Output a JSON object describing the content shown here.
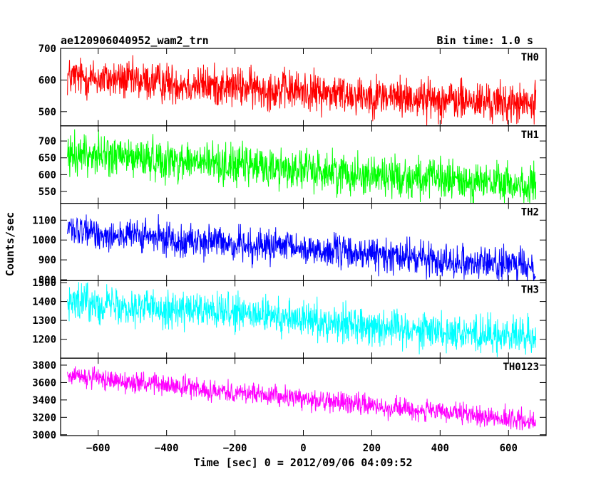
{
  "chart_data": {
    "type": "line",
    "title": "ae120906040952_wam2_trn",
    "subtitle": "Bin time: 1.0 s",
    "xlabel": "Time [sec] 0 = 2012/09/06 04:09:52",
    "ylabel": "Counts/sec",
    "xlim": [
      -710,
      710
    ],
    "x_ticks": [
      -600,
      -400,
      -200,
      0,
      200,
      400,
      600
    ],
    "x_range": [
      -690,
      680
    ],
    "series": [
      {
        "name": "TH0",
        "color": "#ff0000",
        "ylim": [
          455,
          700
        ],
        "yticks": [
          500,
          600,
          700
        ],
        "start": 610,
        "end": 520,
        "noise": 42,
        "data_kind": "noisy-linear"
      },
      {
        "name": "TH1",
        "color": "#00ff00",
        "ylim": [
          515,
          745
        ],
        "yticks": [
          550,
          600,
          650,
          700
        ],
        "start": 665,
        "end": 565,
        "noise": 40,
        "data_kind": "noisy-linear"
      },
      {
        "name": "TH2",
        "color": "#0000ff",
        "ylim": [
          795,
          1185
        ],
        "yticks": [
          800,
          900,
          1000,
          1100
        ],
        "start": 1045,
        "end": 865,
        "noise": 55,
        "data_kind": "noisy-linear"
      },
      {
        "name": "TH3",
        "color": "#00ffff",
        "ylim": [
          1100,
          1510
        ],
        "yticks": [
          1200,
          1300,
          1400,
          1500
        ],
        "start": 1405,
        "end": 1205,
        "noise": 65,
        "data_kind": "noisy-linear"
      },
      {
        "name": "TH0123",
        "color": "#ff00ff",
        "ylim": [
          2990,
          3880
        ],
        "yticks": [
          3000,
          3200,
          3400,
          3600,
          3800
        ],
        "start": 3680,
        "end": 3150,
        "noise": 80,
        "data_kind": "noisy-linear"
      }
    ]
  }
}
